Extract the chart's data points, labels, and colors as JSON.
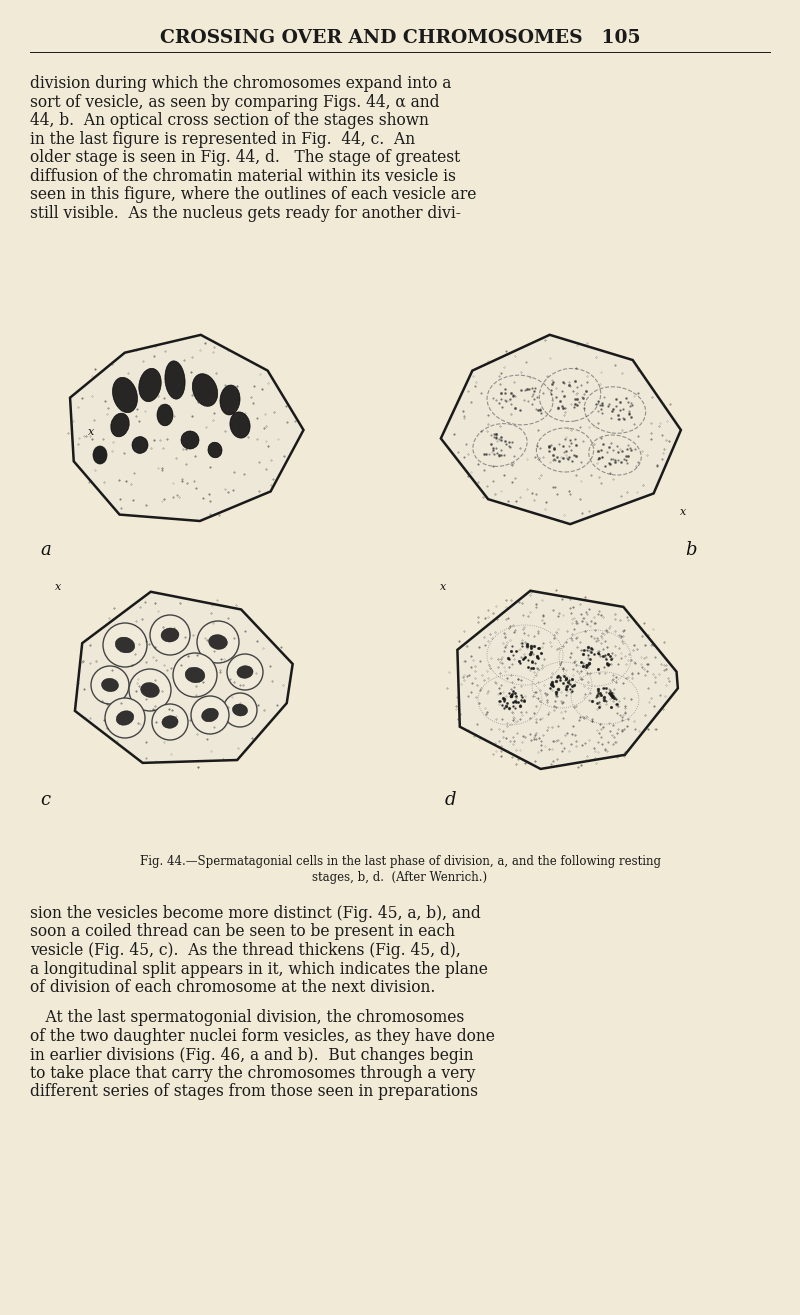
{
  "bg_color": "#f0ead6",
  "text_color": "#1a1a1a",
  "header_text": "CROSSING OVER AND CHROMOSOMES 105",
  "header_fontsize": 13.5,
  "body_fontsize": 11.2,
  "caption_fontsize": 8.5,
  "paragraph1": "division during which the chromosomes expand into a\nsort of vesicle, as seen by comparing Figs. 44, α and\n44, b.  An optical cross section of the stages shown\nin the last figure is represented in Fig.  44, c.  An\nolder stage is seen in Fig. 44, d.   The stage of greatest\ndiffusion of the chromatin material within its vesicle is\nseen in this figure, where the outlines of each vesicle are\nstill visible.  As the nucleus gets ready for another divi-",
  "paragraph2": "sion the vesicles become more distinct (Fig. 45, a, b), and\nsoon a coiled thread can be seen to be present in each\nvesicle (Fig. 45, c).  As the thread thickens (Fig. 45, d),\na longitudinal split appears in it, which indicates the plane\nof division of each chromosome at the next division.",
  "paragraph3": " At the last spermatogonial division, the chromosomes\nof the two daughter nuclei form vesicles, as they have done\nin earlier divisions (Fig. 46, a and b).  But changes begin\nto take place that carry the chromosomes through a very\ndifferent series of stages from those seen in preparations",
  "caption": "Fig. 44.—Spermatagonial cells in the last phase of division, a, and the following resting\nstages, b, d.  (After Wenrich.)"
}
